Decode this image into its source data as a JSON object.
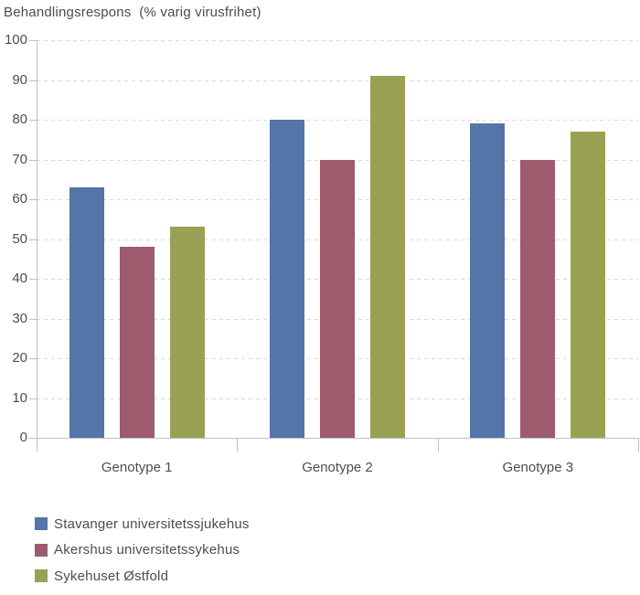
{
  "title": "Behandlingsrespons  (% varig virusfrihet)",
  "chart_data": {
    "type": "bar",
    "title": "Behandlingsrespons  (% varig virusfrihet)",
    "categories": [
      "Genotype 1",
      "Genotype 2",
      "Genotype 3"
    ],
    "series": [
      {
        "name": "Stavanger universitetssjukehus",
        "color": "#5574a8",
        "values": [
          63,
          80,
          79
        ]
      },
      {
        "name": "Akershus universitetssykehus",
        "color": "#9d5b6d",
        "values": [
          48,
          70,
          70
        ]
      },
      {
        "name": "Sykehuset Østfold",
        "color": "#9aa155",
        "values": [
          53,
          91,
          77
        ]
      }
    ],
    "ylim": [
      0,
      100
    ],
    "ytick_step": 10,
    "ytick_labels": [
      "0",
      "10",
      "20",
      "30",
      "40",
      "50",
      "60",
      "70",
      "80",
      "90",
      "100"
    ],
    "grid": "horizontal-dashed",
    "legend_position": "bottom-left"
  },
  "colors": {
    "background": "#ffffff",
    "axis": "#c0c0c0",
    "grid": "#d9d9d9",
    "text": "#4d4d4d"
  }
}
